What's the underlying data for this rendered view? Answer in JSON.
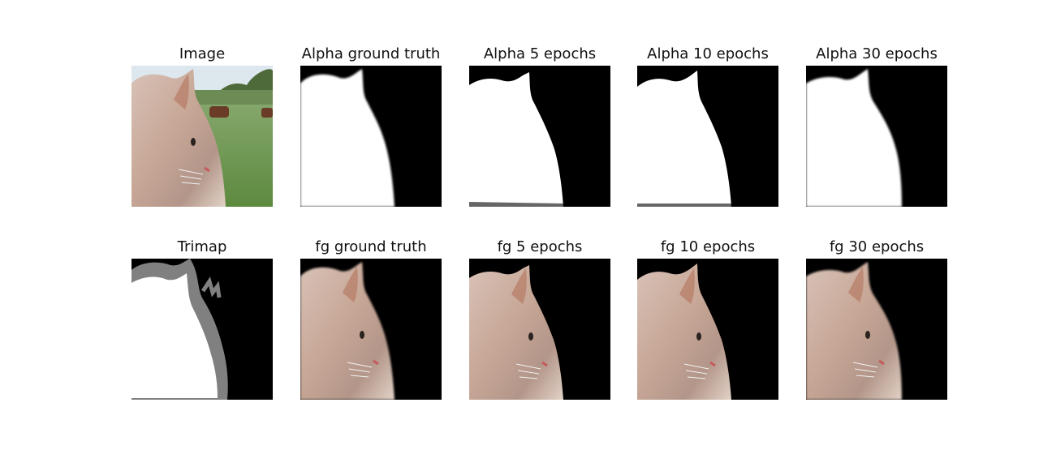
{
  "panels": {
    "image": "Image",
    "alpha_gt": "Alpha ground truth",
    "alpha_5": "Alpha 5 epochs",
    "alpha_10": "Alpha 10 epochs",
    "alpha_30": "Alpha 30 epochs",
    "trimap": "Trimap",
    "fg_gt": "fg ground truth",
    "fg_5": "fg 5 epochs",
    "fg_10": "fg 10 epochs",
    "fg_30": "fg 30 epochs"
  },
  "colors": {
    "background": "#000000",
    "foreground_alpha": "#ffffff",
    "unknown_region": "#808080",
    "cat_fur": "#c9ada0",
    "grass": "#6f9a4e",
    "sky": "#d9e4ea"
  }
}
